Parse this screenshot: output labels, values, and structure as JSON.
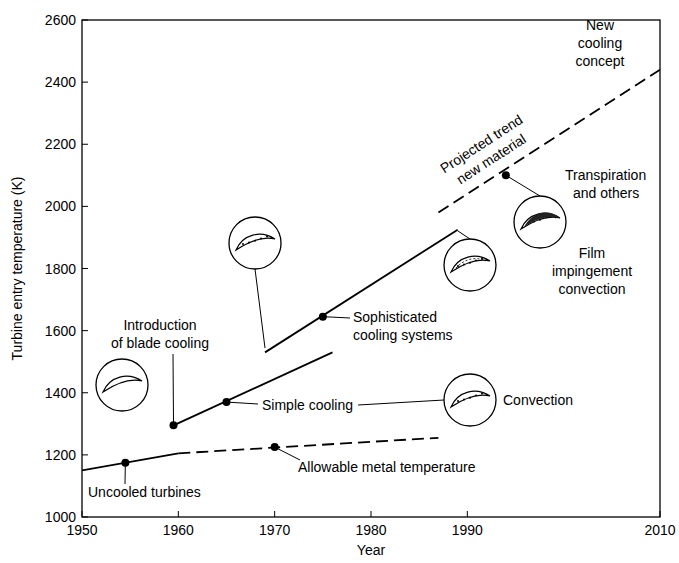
{
  "chart_data": {
    "type": "line",
    "x_label": "Year",
    "y_label": "Turbine entry temperature (K)",
    "xlim": [
      1950,
      2010
    ],
    "ylim": [
      1000,
      2600
    ],
    "xticks": [
      1950,
      1960,
      1970,
      1980,
      1990,
      2010
    ],
    "yticks": [
      1000,
      1200,
      1400,
      1600,
      1800,
      2000,
      2200,
      2400,
      2600
    ],
    "series": [
      {
        "x": [
          1950,
          1960
        ],
        "values": [
          1150,
          1205
        ],
        "color": "#000000",
        "line_style": "solid"
      },
      {
        "x": [
          1960,
          1987
        ],
        "values": [
          1205,
          1255
        ],
        "color": "#000000",
        "line_style": "dashed"
      },
      {
        "x": [
          1959.5,
          1976
        ],
        "values": [
          1295,
          1530
        ],
        "color": "#000000",
        "line_style": "solid"
      },
      {
        "x": [
          1969,
          1989
        ],
        "values": [
          1530,
          1925
        ],
        "color": "#000000",
        "line_style": "solid"
      },
      {
        "x": [
          1987,
          2010
        ],
        "values": [
          1980,
          2440
        ],
        "color": "#000000",
        "line_style": "dashed"
      }
    ],
    "annotations": [
      {
        "lines": [
          "Uncooled turbines"
        ],
        "x": 1954.5,
        "y": 1175
      },
      {
        "lines": [
          "Allowable metal temperature"
        ],
        "x": 1970,
        "y": 1225
      },
      {
        "lines": [
          "Introduction",
          "of blade cooling"
        ],
        "x": 1959.5,
        "y": 1295
      },
      {
        "lines": [
          "Simple cooling"
        ],
        "x": 1965,
        "y": 1370
      },
      {
        "lines": [
          "Sophisticated",
          "cooling systems"
        ],
        "x": 1975,
        "y": 1645
      },
      {
        "lines": [
          "Convection"
        ]
      },
      {
        "lines": [
          "Film",
          "impingement",
          "convection"
        ]
      },
      {
        "lines": [
          "Transpiration",
          "and others"
        ],
        "x": 1994,
        "y": 2100
      },
      {
        "lines": [
          "New",
          "cooling",
          "concept"
        ]
      },
      {
        "lines": [
          "Projected trend",
          "new material"
        ]
      }
    ]
  }
}
